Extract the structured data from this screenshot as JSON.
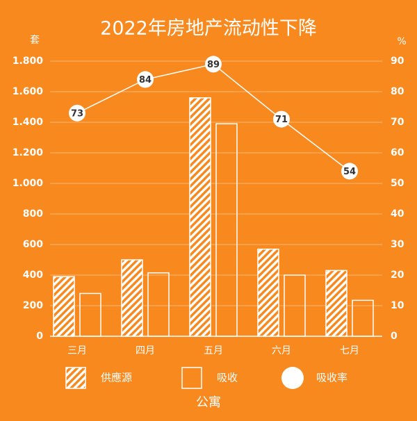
{
  "chart_data": {
    "type": "bar",
    "title": "2022年房地产流动性下降",
    "ylabel": "套",
    "y2label": "%",
    "xlabel": "公寓",
    "categories": [
      "三月",
      "四月",
      "五月",
      "六月",
      "七月"
    ],
    "series": [
      {
        "name": "供應源",
        "color": "#ffffff",
        "type": "bar",
        "hatch": true,
        "values": [
          390,
          500,
          1560,
          570,
          430
        ]
      },
      {
        "name": "吸收",
        "color": "#ffffff",
        "type": "bar",
        "hatch": false,
        "values": [
          280,
          415,
          1390,
          400,
          235
        ]
      },
      {
        "name": "吸收率",
        "color": "#ffffff",
        "type": "line",
        "axis": "y2",
        "values": [
          73,
          84,
          89,
          71,
          54
        ]
      }
    ],
    "ylim": [
      0,
      1800
    ],
    "yticks": [
      0,
      200,
      400,
      600,
      800,
      {
        "value": 1000,
        "label": "1.000"
      },
      {
        "value": 1200,
        "label": "1.200"
      },
      {
        "value": 1400,
        "label": "1.400"
      },
      {
        "value": 1600,
        "label": "1.600"
      },
      {
        "value": 1800,
        "label": "1.800"
      }
    ],
    "y2lim": [
      0,
      90
    ],
    "y2ticks": [
      0,
      10,
      20,
      30,
      40,
      50,
      60,
      70,
      80,
      90
    ],
    "grid": true
  }
}
